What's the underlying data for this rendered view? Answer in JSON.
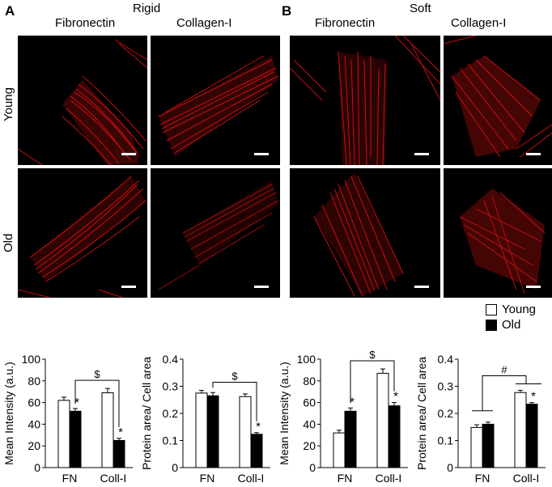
{
  "figure": {
    "panel_a": {
      "letter": "A",
      "condition": "Rigid",
      "col1": "Fibronectin",
      "col2": "Collagen-I"
    },
    "panel_b": {
      "letter": "B",
      "condition": "Soft",
      "col1": "Fibronectin",
      "col2": "Collagen-I"
    },
    "rows": {
      "young": "Young",
      "old": "Old"
    },
    "legend": {
      "young": "Young",
      "old": "Old"
    },
    "colors": {
      "actin": "#e01010",
      "young_bar": "#ffffff",
      "old_bar": "#000000"
    }
  },
  "chart_data": [
    {
      "type": "bar",
      "categories": [
        "FN",
        "Coll-I"
      ],
      "series": [
        {
          "name": "Young",
          "values": [
            62,
            69
          ],
          "errors": [
            3,
            4
          ]
        },
        {
          "name": "Old",
          "values": [
            52,
            25
          ],
          "errors": [
            2.5,
            2
          ]
        }
      ],
      "ylabel": "Mean Intensity (a.u.)",
      "ylim": [
        0,
        100
      ],
      "yticks": [
        "0",
        "20",
        "40",
        "60",
        "80",
        "100"
      ],
      "sig_stars": [
        "*",
        "*"
      ],
      "bracket_label": "$"
    },
    {
      "type": "bar",
      "categories": [
        "FN",
        "Coll-I"
      ],
      "series": [
        {
          "name": "Young",
          "values": [
            0.275,
            0.262
          ],
          "errors": [
            0.01,
            0.01
          ]
        },
        {
          "name": "Old",
          "values": [
            0.265,
            0.123
          ],
          "errors": [
            0.012,
            0.006
          ]
        }
      ],
      "ylabel": "Protein area/ Cell area",
      "ylim": [
        0,
        0.4
      ],
      "yticks": [
        "0",
        "0.1",
        "0.2",
        "0.3",
        "0.4"
      ],
      "sig_stars": [
        "*"
      ],
      "bracket_label": "$"
    },
    {
      "type": "bar",
      "categories": [
        "FN",
        "Coll-I"
      ],
      "series": [
        {
          "name": "Young",
          "values": [
            32,
            87
          ],
          "errors": [
            2.5,
            4
          ]
        },
        {
          "name": "Old",
          "values": [
            52,
            57
          ],
          "errors": [
            3,
            3
          ]
        }
      ],
      "ylabel": "Mean Intensity (a.u.)",
      "ylim": [
        0,
        100
      ],
      "yticks": [
        "0",
        "20",
        "40",
        "60",
        "80",
        "100"
      ],
      "sig_stars": [
        "*",
        "*"
      ],
      "bracket_label": "$"
    },
    {
      "type": "bar",
      "categories": [
        "FN",
        "Coll-I"
      ],
      "series": [
        {
          "name": "Young",
          "values": [
            0.148,
            0.277
          ],
          "errors": [
            0.01,
            0.008
          ]
        },
        {
          "name": "Old",
          "values": [
            0.16,
            0.234
          ],
          "errors": [
            0.008,
            0.006
          ]
        }
      ],
      "ylabel": "Protein area/ Cell area",
      "ylim": [
        0,
        0.4
      ],
      "yticks": [
        "0",
        "0.1",
        "0.2",
        "0.3",
        "0.4"
      ],
      "sig_stars": [
        "*"
      ],
      "bracket_label": "#"
    }
  ]
}
